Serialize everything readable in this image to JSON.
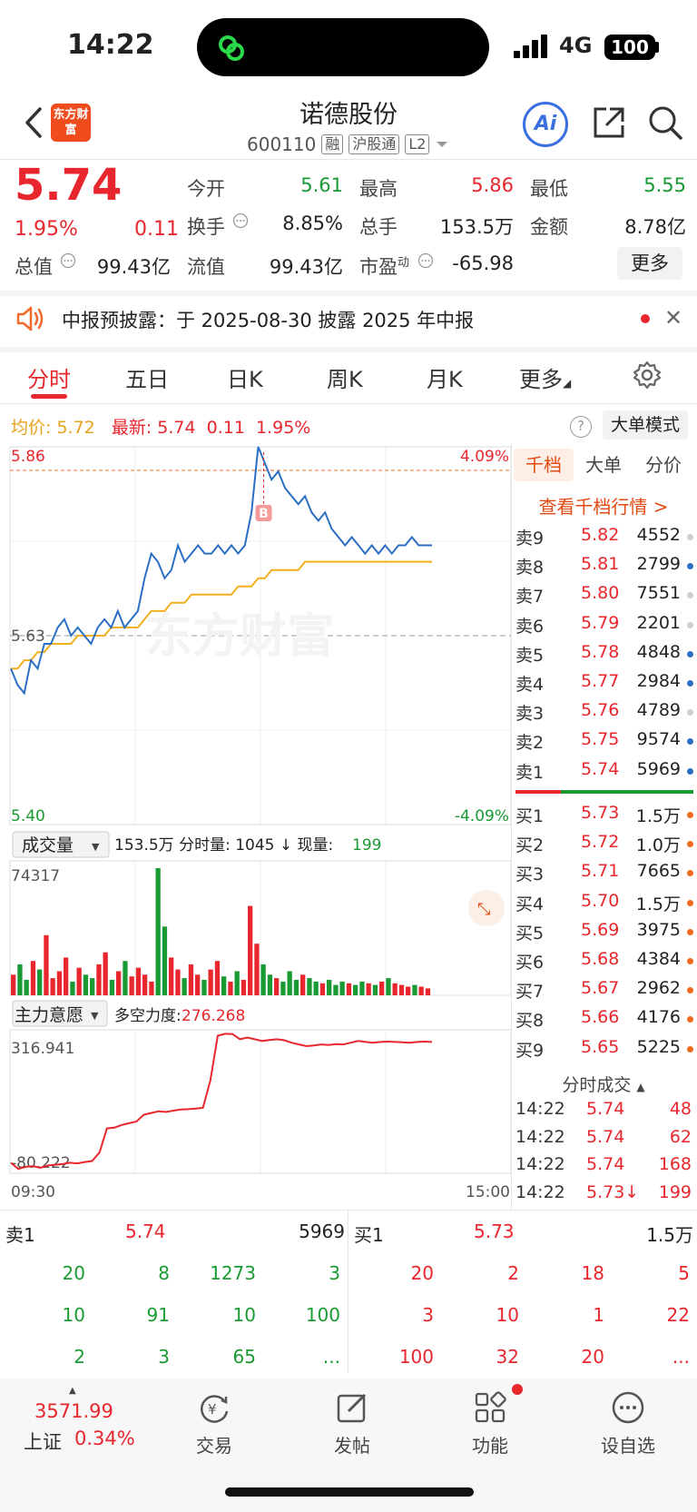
{
  "status_bar": {
    "time": "14:22",
    "network": "4G",
    "battery": "100"
  },
  "header": {
    "logo_text": "东方财富",
    "stock_name": "诺德股份",
    "stock_code": "600110",
    "tags": [
      "融",
      "沪股通",
      "L2"
    ],
    "ai_label": "Ai"
  },
  "quote": {
    "price": "5.74",
    "change_pct": "1.95%",
    "change": "0.11",
    "fields": [
      {
        "label": "今开",
        "value": "5.61",
        "color": "green"
      },
      {
        "label": "最高",
        "value": "5.86",
        "color": "red"
      },
      {
        "label": "最低",
        "value": "5.55",
        "color": "green"
      },
      {
        "label": "换手",
        "value": "8.85%",
        "color": "dark"
      },
      {
        "label": "总手",
        "value": "153.5万",
        "color": "dark"
      },
      {
        "label": "金额",
        "value": "8.78亿",
        "color": "dark"
      },
      {
        "label": "总值",
        "value": "99.43亿",
        "color": "dark"
      },
      {
        "label": "流值",
        "value": "99.43亿",
        "color": "dark"
      },
      {
        "label": "市盈",
        "sup": "动",
        "value": "-65.98",
        "color": "dark"
      }
    ],
    "more_label": "更多"
  },
  "notice": {
    "text": "中报预披露：于 2025-08-30 披露 2025 年中报"
  },
  "tabs": [
    "分时",
    "五日",
    "日K",
    "周K",
    "月K",
    "更多"
  ],
  "avg_row": {
    "avg_label": "均价:",
    "avg_value": "5.72",
    "latest_label": "最新:",
    "latest_value": "5.74",
    "latest_change": "0.11",
    "latest_pct": "1.95%"
  },
  "big_order_mode": "大单模式",
  "chart_data": {
    "type": "line",
    "title": "",
    "price_axis": {
      "top_label": "5.86",
      "mid_label": "5.63",
      "bottom_label": "5.40",
      "ylim": [
        5.4,
        5.86
      ]
    },
    "pct_axis": {
      "top_label": "4.09%",
      "bottom_label": "-4.09%"
    },
    "time_labels": {
      "start": "09:30",
      "end": "15:00"
    },
    "buy_marker": "B",
    "series": [
      {
        "values": [
          5.59,
          5.57,
          5.56,
          5.6,
          5.59,
          5.62,
          5.62,
          5.64,
          5.65,
          5.63,
          5.64,
          5.63,
          5.62,
          5.64,
          5.65,
          5.64,
          5.66,
          5.64,
          5.65,
          5.66,
          5.7,
          5.73,
          5.72,
          5.7,
          5.71,
          5.74,
          5.72,
          5.73,
          5.74,
          5.73,
          5.73,
          5.74,
          5.73,
          5.74,
          5.73,
          5.74,
          5.78,
          5.86,
          5.84,
          5.82,
          5.83,
          5.81,
          5.8,
          5.79,
          5.8,
          5.78,
          5.77,
          5.78,
          5.76,
          5.75,
          5.74,
          5.75,
          5.74,
          5.73,
          5.74,
          5.73,
          5.74,
          5.73,
          5.74,
          5.74,
          5.75,
          5.74,
          5.74,
          5.74
        ]
      },
      {
        "values": [
          5.59,
          5.59,
          5.6,
          5.6,
          5.61,
          5.61,
          5.62,
          5.62,
          5.62,
          5.62,
          5.63,
          5.63,
          5.63,
          5.63,
          5.63,
          5.64,
          5.64,
          5.64,
          5.64,
          5.64,
          5.65,
          5.66,
          5.66,
          5.66,
          5.67,
          5.67,
          5.67,
          5.68,
          5.68,
          5.68,
          5.68,
          5.68,
          5.68,
          5.68,
          5.69,
          5.69,
          5.69,
          5.7,
          5.7,
          5.71,
          5.71,
          5.71,
          5.71,
          5.71,
          5.72,
          5.72,
          5.72,
          5.72,
          5.72,
          5.72,
          5.72,
          5.72,
          5.72,
          5.72,
          5.72,
          5.72,
          5.72,
          5.72,
          5.72,
          5.72,
          5.72,
          5.72,
          5.72,
          5.72
        ]
      }
    ],
    "volume": {
      "selector": "成交量",
      "summary": "153.5万 分时量: 1045 ↓ 现量:",
      "current": "199",
      "max_label": "74317",
      "values": [
        12,
        18,
        9,
        20,
        15,
        35,
        10,
        14,
        22,
        8,
        16,
        12,
        10,
        18,
        25,
        9,
        14,
        20,
        11,
        16,
        12,
        8,
        74,
        40,
        22,
        15,
        10,
        18,
        12,
        9,
        15,
        20,
        11,
        8,
        14,
        9,
        52,
        30,
        18,
        12,
        10,
        8,
        14,
        9,
        12,
        10,
        8,
        7,
        9,
        6,
        8,
        7,
        6,
        8,
        7,
        6,
        8,
        10,
        7,
        6,
        5,
        6,
        5,
        4
      ]
    },
    "main_force": {
      "selector": "主力意愿",
      "label": "多空力度:",
      "value": "276.268",
      "max_label": "316.941",
      "min_label": "-80.222",
      "values": [
        -60,
        -78,
        -72,
        -70,
        -75,
        -68,
        -66,
        -64,
        -60,
        -62,
        -58,
        -55,
        -30,
        40,
        42,
        50,
        55,
        60,
        80,
        85,
        90,
        88,
        92,
        95,
        96,
        98,
        100,
        180,
        310,
        316,
        315,
        300,
        305,
        300,
        295,
        298,
        300,
        297,
        290,
        285,
        280,
        282,
        285,
        283,
        286,
        285,
        290,
        295,
        292,
        290,
        292,
        293,
        292,
        291,
        290,
        292,
        293,
        292
      ]
    }
  },
  "order_book": {
    "tabs": [
      "千档",
      "大单",
      "分价"
    ],
    "link": "查看千档行情 >",
    "asks": [
      {
        "label": "卖9",
        "price": "5.82",
        "vol": "4552",
        "dot": "gray"
      },
      {
        "label": "卖8",
        "price": "5.81",
        "vol": "2799",
        "dot": "blue"
      },
      {
        "label": "卖7",
        "price": "5.80",
        "vol": "7551",
        "dot": "gray"
      },
      {
        "label": "卖6",
        "price": "5.79",
        "vol": "2201",
        "dot": "gray"
      },
      {
        "label": "卖5",
        "price": "5.78",
        "vol": "4848",
        "dot": "blue"
      },
      {
        "label": "卖4",
        "price": "5.77",
        "vol": "2984",
        "dot": "blue"
      },
      {
        "label": "卖3",
        "price": "5.76",
        "vol": "4789",
        "dot": "gray"
      },
      {
        "label": "卖2",
        "price": "5.75",
        "vol": "9574",
        "dot": "blue"
      },
      {
        "label": "卖1",
        "price": "5.74",
        "vol": "5969",
        "dot": "blue"
      }
    ],
    "bids": [
      {
        "label": "买1",
        "price": "5.73",
        "vol": "1.5万",
        "dot": "orange"
      },
      {
        "label": "买2",
        "price": "5.72",
        "vol": "1.0万",
        "dot": "orange"
      },
      {
        "label": "买3",
        "price": "5.71",
        "vol": "7665",
        "dot": "orange"
      },
      {
        "label": "买4",
        "price": "5.70",
        "vol": "1.5万",
        "dot": "orange"
      },
      {
        "label": "买5",
        "price": "5.69",
        "vol": "3975",
        "dot": "orange"
      },
      {
        "label": "买6",
        "price": "5.68",
        "vol": "4384",
        "dot": "orange"
      },
      {
        "label": "买7",
        "price": "5.67",
        "vol": "2962",
        "dot": "orange"
      },
      {
        "label": "买8",
        "price": "5.66",
        "vol": "4176",
        "dot": "orange"
      },
      {
        "label": "买9",
        "price": "5.65",
        "vol": "5225",
        "dot": "orange"
      }
    ],
    "ticks_title": "分时成交",
    "ticks": [
      {
        "time": "14:22",
        "price": "5.74",
        "vol": "48"
      },
      {
        "time": "14:22",
        "price": "5.74",
        "vol": "62"
      },
      {
        "time": "14:22",
        "price": "5.74",
        "vol": "168"
      },
      {
        "time": "14:22",
        "price": "5.73↓",
        "vol": "199"
      }
    ]
  },
  "level_panel": {
    "sell": {
      "label": "卖1",
      "price": "5.74",
      "vol": "5969",
      "queue": [
        [
          "20",
          "8",
          "1273",
          "3"
        ],
        [
          "10",
          "91",
          "10",
          "100"
        ],
        [
          "2",
          "3",
          "65",
          "..."
        ]
      ]
    },
    "buy": {
      "label": "买1",
      "price": "5.73",
      "vol": "1.5万",
      "queue": [
        [
          "20",
          "2",
          "18",
          "5"
        ],
        [
          "3",
          "10",
          "1",
          "22"
        ],
        [
          "100",
          "32",
          "20",
          "..."
        ]
      ]
    }
  },
  "bottom_nav": {
    "index_value": "3571.99",
    "index_name": "上证",
    "index_pct": "0.34%",
    "items": [
      "交易",
      "发帖",
      "功能",
      "设自选"
    ]
  },
  "colors": {
    "red": "#e8262d",
    "green": "#1a9a33",
    "blue": "#2b6fc4",
    "avg": "#f2b01e",
    "accent": "#e24a12"
  }
}
